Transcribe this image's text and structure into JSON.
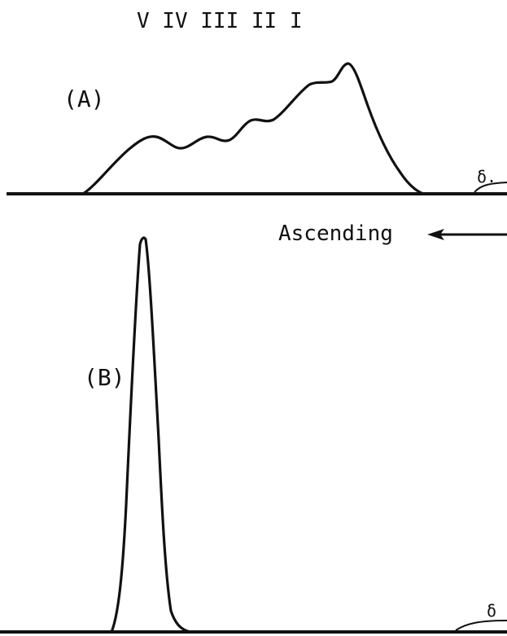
{
  "peak_labels": "V IV III II I",
  "panel_a": {
    "label": "(A)",
    "baseline_marker": "δ."
  },
  "direction": {
    "label": "Ascending"
  },
  "panel_b": {
    "label": "(B)",
    "baseline_marker": "δ"
  },
  "colors": {
    "ink": "#111111",
    "background": "#ffffff"
  }
}
